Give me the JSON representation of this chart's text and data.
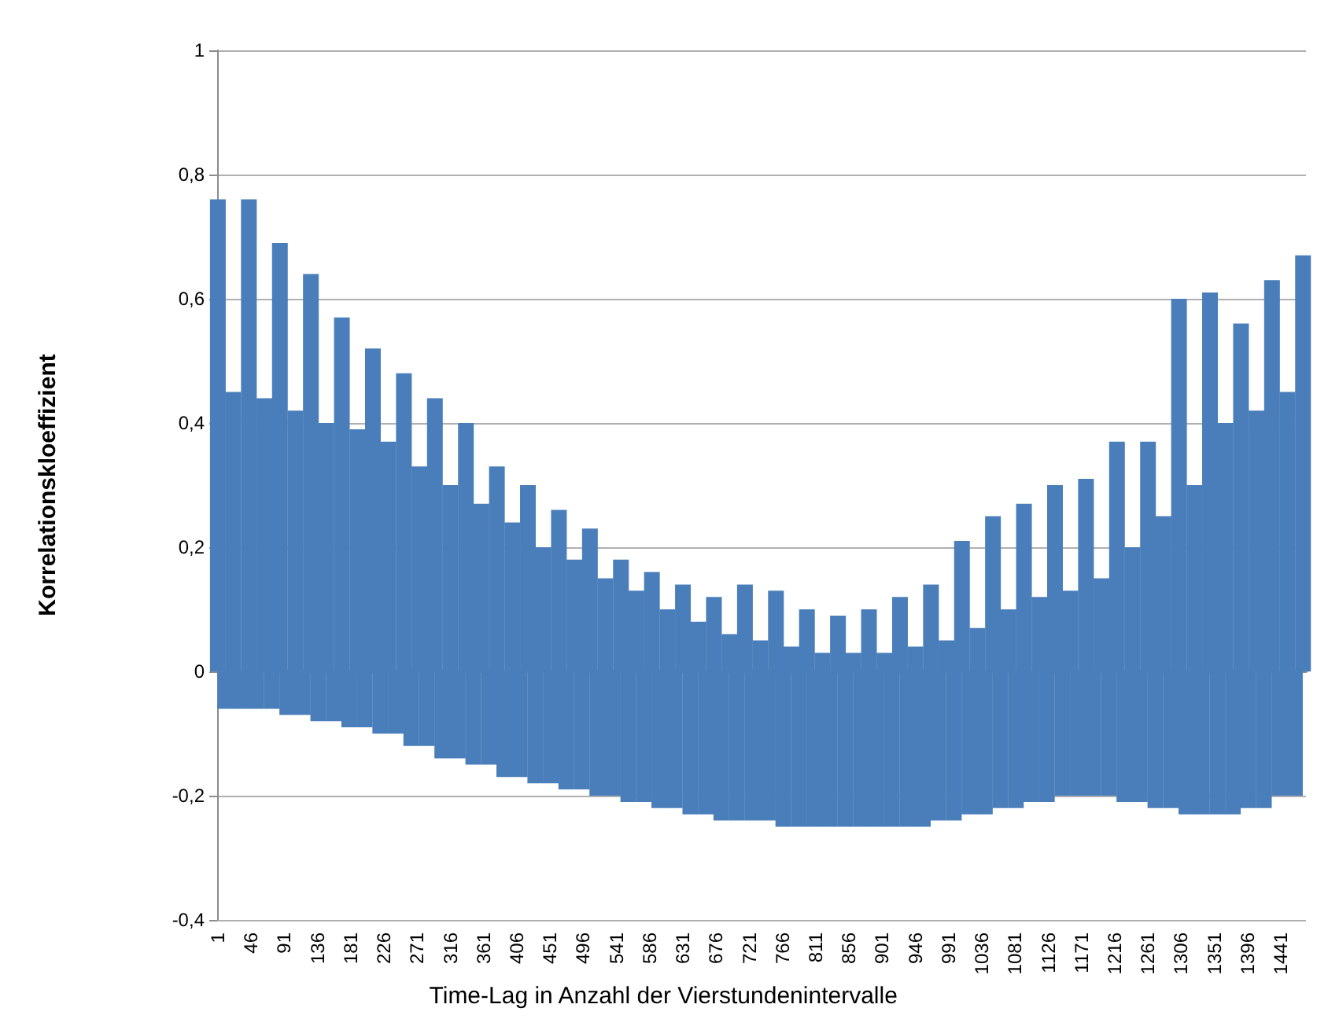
{
  "chart_data": {
    "type": "bar",
    "xlabel": "Time-Lag in Anzahl der Vierstundenintervalle",
    "ylabel": "Korrelationskloeffizient",
    "x": [
      1,
      11,
      22,
      32,
      43,
      53,
      64,
      74,
      85,
      95,
      106,
      116,
      127,
      137,
      148,
      158,
      169,
      179,
      190,
      200,
      211,
      221,
      232,
      242,
      253,
      263,
      274,
      284,
      295,
      305,
      316,
      326,
      337,
      347,
      358,
      368,
      379,
      389,
      400,
      410,
      421,
      431,
      442,
      452,
      463,
      473,
      484,
      494,
      505,
      515,
      526,
      536,
      547,
      557,
      568,
      578,
      589,
      599,
      610,
      620,
      631,
      641,
      652,
      662,
      673,
      683,
      694,
      704,
      715,
      725,
      736,
      746,
      757,
      767,
      778,
      788,
      799,
      809,
      820,
      830,
      841,
      851,
      862,
      872,
      883,
      893,
      904,
      914,
      925,
      935,
      946,
      956,
      967,
      977,
      988,
      998,
      1009,
      1019,
      1030,
      1040,
      1051,
      1061,
      1072,
      1082,
      1093,
      1103,
      1114,
      1124,
      1135,
      1145,
      1156,
      1166,
      1177,
      1187,
      1198,
      1208,
      1219,
      1229,
      1240,
      1250,
      1261,
      1271,
      1282,
      1292,
      1303,
      1313,
      1324,
      1334,
      1345,
      1355,
      1366,
      1376,
      1387,
      1397,
      1408,
      1418,
      1429,
      1439,
      1450,
      1460,
      1471
    ],
    "series": [
      {
        "color": "#4a7ebb",
        "values": [
          0.76,
          -0.06,
          0.45,
          -0.06,
          0.76,
          -0.06,
          0.44,
          -0.06,
          0.69,
          -0.07,
          0.42,
          -0.07,
          0.64,
          -0.08,
          0.4,
          -0.08,
          0.57,
          -0.09,
          0.39,
          -0.09,
          0.52,
          -0.1,
          0.37,
          -0.1,
          0.48,
          -0.12,
          0.33,
          -0.12,
          0.44,
          -0.14,
          0.3,
          -0.14,
          0.4,
          -0.15,
          0.27,
          -0.15,
          0.33,
          -0.17,
          0.24,
          -0.17,
          0.3,
          -0.18,
          0.2,
          -0.18,
          0.26,
          -0.19,
          0.18,
          -0.19,
          0.23,
          -0.2,
          0.15,
          -0.2,
          0.18,
          -0.21,
          0.13,
          -0.21,
          0.16,
          -0.22,
          0.1,
          -0.22,
          0.14,
          -0.23,
          0.08,
          -0.23,
          0.12,
          -0.24,
          0.06,
          -0.24,
          0.14,
          -0.24,
          0.05,
          -0.24,
          0.13,
          -0.25,
          0.04,
          -0.25,
          0.1,
          -0.25,
          0.03,
          -0.25,
          0.09,
          -0.25,
          0.03,
          -0.25,
          0.1,
          -0.25,
          0.03,
          -0.25,
          0.12,
          -0.25,
          0.04,
          -0.25,
          0.14,
          -0.24,
          0.05,
          -0.24,
          0.21,
          -0.23,
          0.07,
          -0.23,
          0.25,
          -0.22,
          0.1,
          -0.22,
          0.27,
          -0.21,
          0.12,
          -0.21,
          0.3,
          -0.2,
          0.13,
          -0.2,
          0.31,
          -0.2,
          0.15,
          -0.2,
          0.37,
          -0.21,
          0.2,
          -0.21,
          0.37,
          -0.22,
          0.25,
          -0.22,
          0.6,
          -0.23,
          0.3,
          -0.23,
          0.61,
          -0.23,
          0.4,
          -0.23,
          0.56,
          -0.22,
          0.42,
          -0.22,
          0.63,
          -0.2,
          0.45,
          -0.2,
          0.67
        ]
      }
    ],
    "xlim": [
      0,
      1475
    ],
    "xticks": [
      1,
      46,
      91,
      136,
      181,
      226,
      271,
      316,
      361,
      406,
      451,
      496,
      541,
      586,
      631,
      676,
      721,
      766,
      811,
      856,
      901,
      946,
      991,
      1036,
      1081,
      1126,
      1171,
      1216,
      1261,
      1306,
      1351,
      1396,
      1441
    ],
    "ylim": [
      -0.4,
      1
    ],
    "yticks": [
      {
        "value": -0.4,
        "label": "-0,4"
      },
      {
        "value": -0.2,
        "label": "-0,2"
      },
      {
        "value": 0,
        "label": "0"
      },
      {
        "value": 0.2,
        "label": "0,2"
      },
      {
        "value": 0.4,
        "label": "0,4"
      },
      {
        "value": 0.6,
        "label": "0,6"
      },
      {
        "value": 0.8,
        "label": "0,8"
      },
      {
        "value": 1,
        "label": "1"
      }
    ],
    "grid": "y"
  }
}
